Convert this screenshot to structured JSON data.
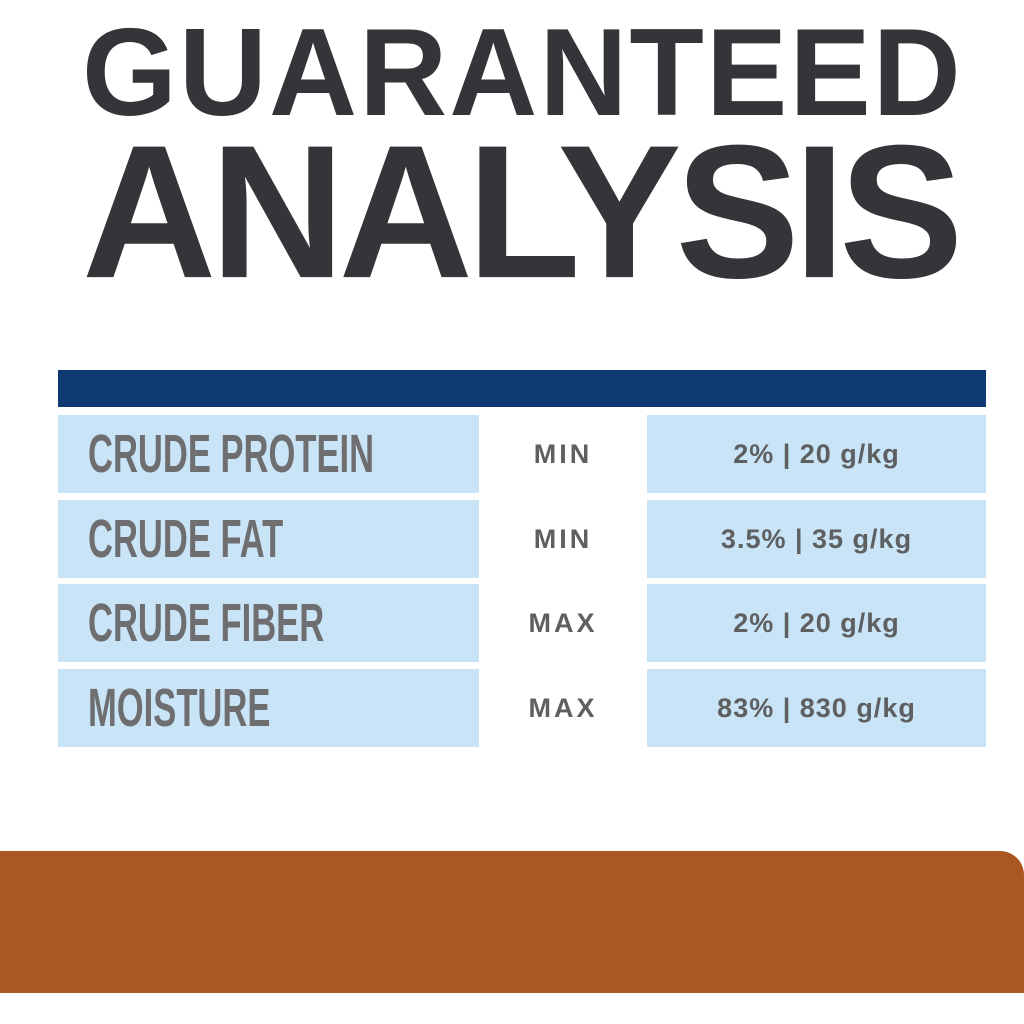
{
  "title": {
    "line1": "GUARANTEED",
    "line2": "ANALYSIS"
  },
  "table": {
    "rows": [
      {
        "nutrient": "CRUDE PROTEIN",
        "qualifier": "MIN",
        "value": "2% | 20 g/kg"
      },
      {
        "nutrient": "CRUDE FAT",
        "qualifier": "MIN",
        "value": "3.5% | 35 g/kg"
      },
      {
        "nutrient": "CRUDE FIBER",
        "qualifier": "MAX",
        "value": "2% | 20 g/kg"
      },
      {
        "nutrient": "MOISTURE",
        "qualifier": "MAX",
        "value": "83% | 830 g/kg"
      }
    ]
  },
  "colors": {
    "title": "#353539",
    "navy": "#0e3a73",
    "lightblue": "#c9e4f6",
    "labelgray": "#6e6e71",
    "valuegray": "#5e5f61",
    "orange": "#aa5724"
  }
}
